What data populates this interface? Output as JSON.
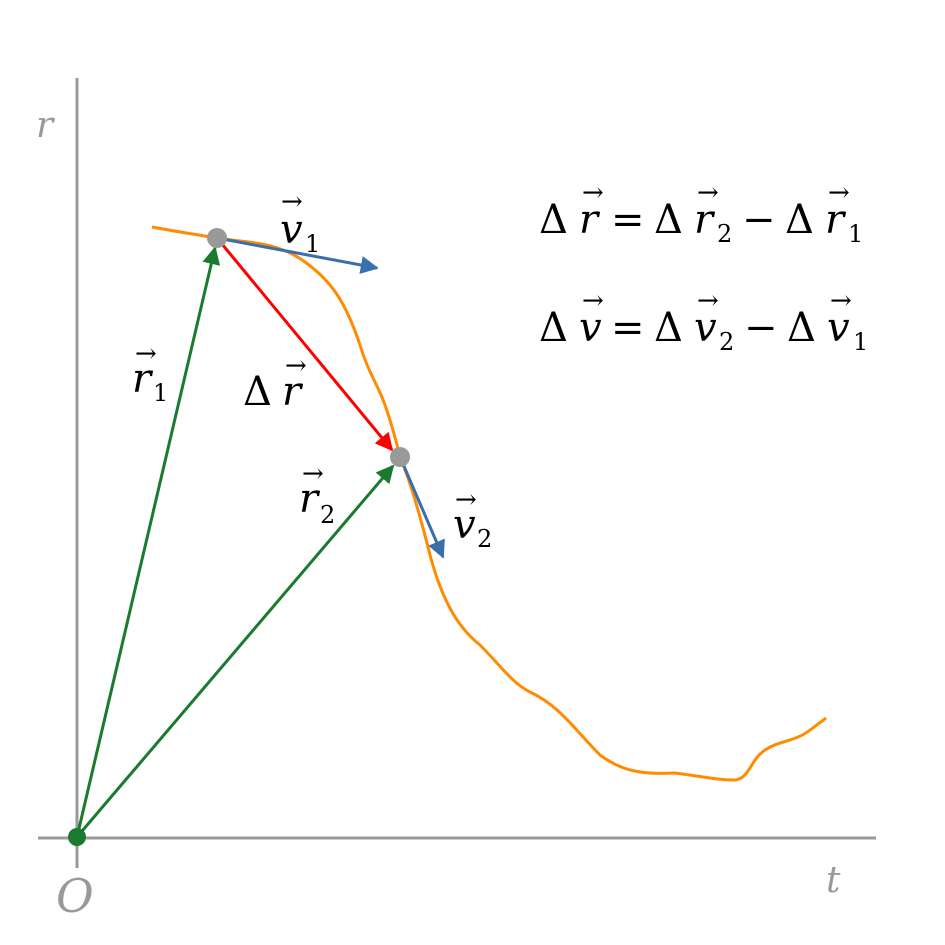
{
  "axes": {
    "vertical_label": "r",
    "horizontal_label": "t",
    "origin_label": "O",
    "color": "#999999"
  },
  "curve": {
    "color": "#FF8C00"
  },
  "vectors": {
    "r1": {
      "symbol": "r",
      "subscript": "1",
      "color": "#1A7A2E"
    },
    "r2": {
      "symbol": "r",
      "subscript": "2",
      "color": "#1A7A2E"
    },
    "delta_r": {
      "delta": "Δ",
      "symbol": "r",
      "color": "#FF0000"
    },
    "v1": {
      "symbol": "v",
      "subscript": "1",
      "color": "#3A6EAD"
    },
    "v2": {
      "symbol": "v",
      "subscript": "2",
      "color": "#3A6EAD"
    }
  },
  "points": {
    "color": "#999999",
    "origin_color": "#1A7A2E"
  },
  "equations": {
    "eq1": {
      "lhs_delta": "Δ",
      "lhs_var": "r",
      "equals": "=",
      "t1_delta": "Δ",
      "t1_var": "r",
      "t1_sub": "2",
      "minus": "−",
      "t2_delta": "Δ",
      "t2_var": "r",
      "t2_sub": "1"
    },
    "eq2": {
      "lhs_delta": "Δ",
      "lhs_var": "v",
      "equals": "=",
      "t1_delta": "Δ",
      "t1_var": "v",
      "t1_sub": "2",
      "minus": "−",
      "t2_delta": "Δ",
      "t2_var": "v",
      "t2_sub": "1"
    }
  },
  "arrow_glyph": "→"
}
